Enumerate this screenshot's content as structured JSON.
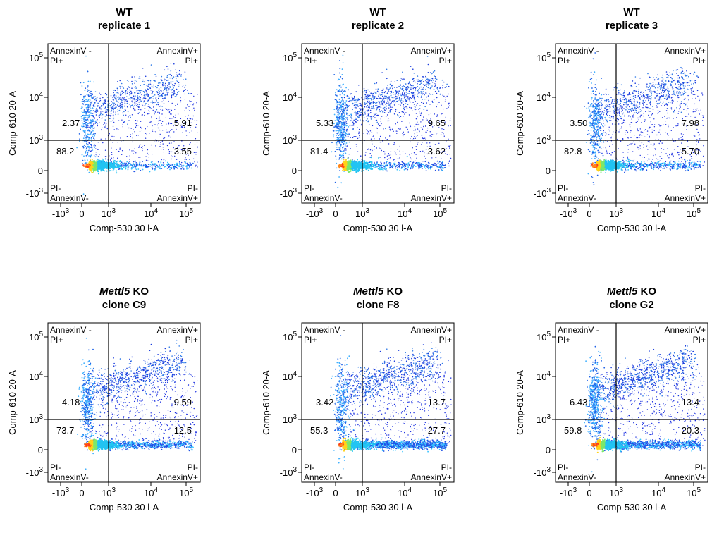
{
  "chart_data": [
    {
      "type": "scatter",
      "title_gene": "",
      "title_line1": "WT",
      "title_line2": "replicate 1",
      "xlabel": "Comp-530  30 l-A",
      "ylabel": "Comp-610  20-A",
      "x_ticks": [
        "-10^3",
        "0",
        "10^3",
        "10^4",
        "10^5"
      ],
      "y_ticks": [
        "10^5",
        "10^4",
        "10^3",
        "0",
        "-10^3"
      ],
      "quadrant_labels": {
        "upper_left": [
          "AnnexinV -",
          "PI+"
        ],
        "upper_right": [
          "AnnexinV+",
          "PI+"
        ],
        "lower_left": [
          "PI-",
          "AnnexinV-"
        ],
        "lower_right": [
          "PI-",
          "AnnexinV+"
        ]
      },
      "quadrant_percent": {
        "upper_left": "2.37",
        "upper_right": "5.91",
        "lower_left": "88.2",
        "lower_right": "3.55"
      }
    },
    {
      "type": "scatter",
      "title_gene": "",
      "title_line1": "WT",
      "title_line2": "replicate 2",
      "xlabel": "Comp-530  30 l-A",
      "ylabel": "Comp-610  20-A",
      "x_ticks": [
        "-10^3",
        "0",
        "10^3",
        "10^4",
        "10^5"
      ],
      "y_ticks": [
        "10^5",
        "10^4",
        "10^3",
        "0",
        "-10^3"
      ],
      "quadrant_labels": {
        "upper_left": [
          "AnnexinV -",
          "PI+"
        ],
        "upper_right": [
          "AnnexinV+",
          "PI+"
        ],
        "lower_left": [
          "PI-",
          "AnnexinV-"
        ],
        "lower_right": [
          "PI-",
          "AnnexinV+"
        ]
      },
      "quadrant_percent": {
        "upper_left": "5.33",
        "upper_right": "9.65",
        "lower_left": "81.4",
        "lower_right": "3.62"
      }
    },
    {
      "type": "scatter",
      "title_gene": "",
      "title_line1": "WT",
      "title_line2": "replicate 3",
      "xlabel": "Comp-530  30 l-A",
      "ylabel": "Comp-610  20-A",
      "x_ticks": [
        "-10^3",
        "0",
        "10^3",
        "10^4",
        "10^5"
      ],
      "y_ticks": [
        "10^5",
        "10^4",
        "10^3",
        "0",
        "-10^3"
      ],
      "quadrant_labels": {
        "upper_left": [
          "AnnexinV -",
          "PI+"
        ],
        "upper_right": [
          "AnnexinV+",
          "PI+"
        ],
        "lower_left": [
          "PI-",
          "AnnexinV-"
        ],
        "lower_right": [
          "PI-",
          "AnnexinV+"
        ]
      },
      "quadrant_percent": {
        "upper_left": "3.50",
        "upper_right": "7.98",
        "lower_left": "82.8",
        "lower_right": "5.70"
      }
    },
    {
      "type": "scatter",
      "title_gene": "Mettl5",
      "title_line1": " KO",
      "title_line2": "clone C9",
      "xlabel": "Comp-530  30 l-A",
      "ylabel": "Comp-610  20-A",
      "x_ticks": [
        "-10^3",
        "0",
        "10^3",
        "10^4",
        "10^5"
      ],
      "y_ticks": [
        "10^5",
        "10^4",
        "10^3",
        "0",
        "-10^3"
      ],
      "quadrant_labels": {
        "upper_left": [
          "AnnexinV -",
          "PI+"
        ],
        "upper_right": [
          "AnnexinV+",
          "PI+"
        ],
        "lower_left": [
          "PI-",
          "AnnexinV-"
        ],
        "lower_right": [
          "PI-",
          "AnnexinV+"
        ]
      },
      "quadrant_percent": {
        "upper_left": "4.18",
        "upper_right": "9.59",
        "lower_left": "73.7",
        "lower_right": "12.5"
      }
    },
    {
      "type": "scatter",
      "title_gene": "Mettl5",
      "title_line1": " KO",
      "title_line2": "clone F8",
      "xlabel": "Comp-530  30 l-A",
      "ylabel": "Comp-610  20-A",
      "x_ticks": [
        "-10^3",
        "0",
        "10^3",
        "10^4",
        "10^5"
      ],
      "y_ticks": [
        "10^5",
        "10^4",
        "10^3",
        "0",
        "-10^3"
      ],
      "quadrant_labels": {
        "upper_left": [
          "AnnexinV -",
          "PI+"
        ],
        "upper_right": [
          "AnnexinV+",
          "PI+"
        ],
        "lower_left": [
          "PI-",
          "AnnexinV-"
        ],
        "lower_right": [
          "PI-",
          "AnnexinV+"
        ]
      },
      "quadrant_percent": {
        "upper_left": "3.42",
        "upper_right": "13.7",
        "lower_left": "55.3",
        "lower_right": "27.7"
      }
    },
    {
      "type": "scatter",
      "title_gene": "Mettl5",
      "title_line1": " KO",
      "title_line2": "clone G2",
      "xlabel": "Comp-530  30 l-A",
      "ylabel": "Comp-610  20-A",
      "x_ticks": [
        "-10^3",
        "0",
        "10^3",
        "10^4",
        "10^5"
      ],
      "y_ticks": [
        "10^5",
        "10^4",
        "10^3",
        "0",
        "-10^3"
      ],
      "quadrant_labels": {
        "upper_left": [
          "AnnexinV -",
          "PI+"
        ],
        "upper_right": [
          "AnnexinV+",
          "PI+"
        ],
        "lower_left": [
          "PI-",
          "AnnexinV-"
        ],
        "lower_right": [
          "PI-",
          "AnnexinV+"
        ]
      },
      "quadrant_percent": {
        "upper_left": "6.43",
        "upper_right": "13.4",
        "lower_left": "59.8",
        "lower_right": "20.3"
      }
    }
  ]
}
